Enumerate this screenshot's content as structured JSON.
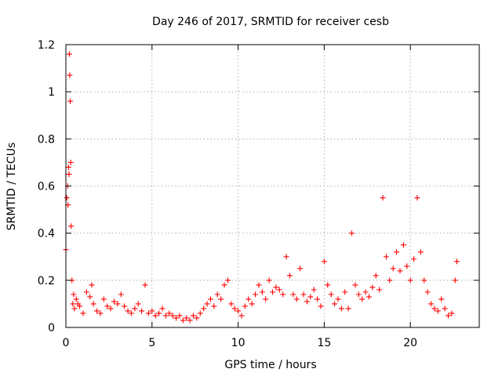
{
  "chart_data": {
    "type": "scatter",
    "title": "Day 246 of 2017, SRMTID for receiver cesb",
    "xlabel": "GPS time / hours",
    "ylabel": "SRMTID / TECUs",
    "xlim": [
      0,
      24
    ],
    "ylim": [
      0,
      1.2
    ],
    "xticks": [
      0,
      5,
      10,
      15,
      20
    ],
    "xtick_labels": [
      "0",
      "5",
      "10",
      "15",
      "20"
    ],
    "yticks": [
      0,
      0.2,
      0.4,
      0.6,
      0.8,
      1,
      1.2
    ],
    "ytick_labels": [
      "0",
      "0.2",
      "0.4",
      "0.6",
      "0.8",
      "1",
      "1.2"
    ],
    "grid": true,
    "marker": "plus",
    "marker_color": "#ff0000",
    "series": [
      {
        "name": "SRMTID",
        "x": [
          0.0,
          0.05,
          0.1,
          0.12,
          0.15,
          0.18,
          0.2,
          0.22,
          0.25,
          0.28,
          0.3,
          0.35,
          0.4,
          0.45,
          0.5,
          0.6,
          0.7,
          0.8,
          1.0,
          1.2,
          1.4,
          1.5,
          1.6,
          1.8,
          2.0,
          2.2,
          2.4,
          2.6,
          2.8,
          3.0,
          3.2,
          3.4,
          3.6,
          3.8,
          4.0,
          4.2,
          4.4,
          4.6,
          4.8,
          5.0,
          5.2,
          5.4,
          5.6,
          5.8,
          6.0,
          6.2,
          6.4,
          6.6,
          6.8,
          7.0,
          7.2,
          7.4,
          7.6,
          7.8,
          8.0,
          8.2,
          8.4,
          8.6,
          8.8,
          9.0,
          9.2,
          9.4,
          9.6,
          9.8,
          10.0,
          10.2,
          10.4,
          10.6,
          10.8,
          11.0,
          11.2,
          11.4,
          11.6,
          11.8,
          12.0,
          12.2,
          12.4,
          12.6,
          12.8,
          13.0,
          13.2,
          13.4,
          13.6,
          13.8,
          14.0,
          14.2,
          14.4,
          14.6,
          14.8,
          15.0,
          15.2,
          15.4,
          15.6,
          15.8,
          16.0,
          16.2,
          16.4,
          16.6,
          16.8,
          17.0,
          17.2,
          17.4,
          17.6,
          17.8,
          18.0,
          18.2,
          18.4,
          18.6,
          18.8,
          19.0,
          19.2,
          19.4,
          19.6,
          19.8,
          20.0,
          20.2,
          20.4,
          20.6,
          20.8,
          21.0,
          21.2,
          21.4,
          21.6,
          21.8,
          22.0,
          22.2,
          22.4,
          22.6,
          22.7
        ],
        "y": [
          0.33,
          0.55,
          0.6,
          0.52,
          0.68,
          0.65,
          1.16,
          1.07,
          0.96,
          0.7,
          0.43,
          0.2,
          0.1,
          0.14,
          0.08,
          0.12,
          0.1,
          0.09,
          0.06,
          0.15,
          0.13,
          0.18,
          0.1,
          0.07,
          0.06,
          0.12,
          0.09,
          0.08,
          0.11,
          0.1,
          0.14,
          0.09,
          0.07,
          0.06,
          0.08,
          0.1,
          0.07,
          0.18,
          0.06,
          0.07,
          0.05,
          0.06,
          0.08,
          0.05,
          0.06,
          0.05,
          0.04,
          0.05,
          0.03,
          0.04,
          0.03,
          0.05,
          0.04,
          0.06,
          0.08,
          0.1,
          0.12,
          0.09,
          0.14,
          0.12,
          0.18,
          0.2,
          0.1,
          0.08,
          0.07,
          0.05,
          0.09,
          0.12,
          0.1,
          0.14,
          0.18,
          0.15,
          0.12,
          0.2,
          0.15,
          0.17,
          0.16,
          0.14,
          0.3,
          0.22,
          0.14,
          0.12,
          0.25,
          0.14,
          0.11,
          0.13,
          0.16,
          0.12,
          0.09,
          0.28,
          0.18,
          0.14,
          0.1,
          0.12,
          0.08,
          0.15,
          0.08,
          0.4,
          0.18,
          0.14,
          0.12,
          0.15,
          0.13,
          0.17,
          0.22,
          0.16,
          0.55,
          0.3,
          0.2,
          0.25,
          0.32,
          0.24,
          0.35,
          0.26,
          0.2,
          0.29,
          0.55,
          0.32,
          0.2,
          0.15,
          0.1,
          0.08,
          0.07,
          0.12,
          0.08,
          0.05,
          0.06,
          0.2,
          0.28
        ]
      }
    ]
  }
}
